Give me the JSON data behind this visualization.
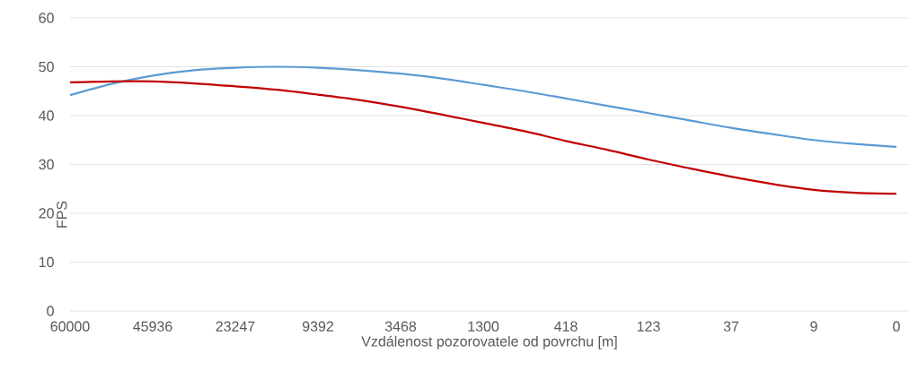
{
  "chart_data": {
    "type": "line",
    "xlabel": "Vzdálenost pozorovatele od povrchu [m]",
    "ylabel": "FPS",
    "categories": [
      "60000",
      null,
      "45936",
      null,
      "23247",
      null,
      "9392",
      null,
      "3468",
      null,
      "1300",
      null,
      "418",
      null,
      "123",
      null,
      "37",
      null,
      "9",
      null,
      "0"
    ],
    "series": [
      {
        "color": "#5b9bd5",
        "values": [
          44.2,
          46.5,
          48.2,
          49.3,
          49.8,
          50,
          49.8,
          49.3,
          48.6,
          47.6,
          46.3,
          45,
          43.5,
          42,
          40.5,
          39,
          37.5,
          36.2,
          35,
          34.2,
          33.6
        ]
      },
      {
        "color": "#c00000",
        "values": [
          46.8,
          47,
          47,
          46.6,
          46,
          45.3,
          44.3,
          43.2,
          41.8,
          40.2,
          38.5,
          36.8,
          34.8,
          33,
          31,
          29.2,
          27.5,
          26,
          24.8,
          24.2,
          24
        ]
      }
    ],
    "ylim": [
      0,
      60
    ],
    "yticks": [
      0,
      10,
      20,
      30,
      40,
      50,
      60
    ],
    "grid": "y"
  }
}
